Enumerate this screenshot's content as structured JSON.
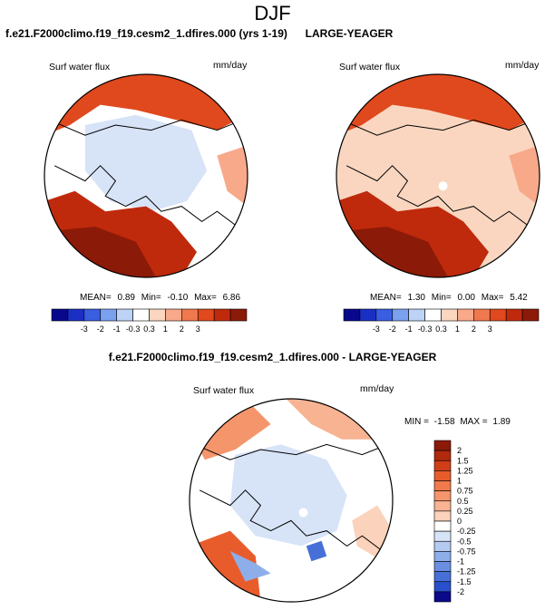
{
  "figure": {
    "season": "DJF",
    "panel1_title": "f.e21.F2000climo.f19_f19.cesm2_1.dfires.000 (yrs 1-19)",
    "panel2_title": "LARGE-YEAGER",
    "diff_title": "f.e21.F2000climo.f19_f19.cesm2_1.dfires.000 - LARGE-YEAGER"
  },
  "chart_data": [
    {
      "type": "heatmap",
      "projection": "north polar stereographic",
      "title": "f.e21.F2000climo.f19_f19.cesm2_1.dfires.000 (yrs 1-19)",
      "left_label": "Surf water flux",
      "units": "mm/day",
      "stats": {
        "mean_label": "MEAN=",
        "mean": "0.89",
        "min_label": "Min=",
        "min": "-0.10",
        "max_label": "Max=",
        "max": "6.86"
      },
      "colorbar": {
        "orientation": "horizontal",
        "levels": [
          -3,
          -2,
          -1,
          -0.3,
          0.3,
          1,
          2,
          3
        ],
        "tick_labels": [
          "-3",
          "-2",
          "-1",
          "-0.3",
          "0.3",
          "1",
          "2",
          "3"
        ],
        "colors": [
          "#08088c",
          "#1a2fc4",
          "#3a5ee0",
          "#7aa0ee",
          "#bcd3f6",
          "#ffffff",
          "#fad6c0",
          "#f7a98a",
          "#f0784f",
          "#e0491d",
          "#bf2a0c",
          "#8c1a08"
        ]
      }
    },
    {
      "type": "heatmap",
      "projection": "north polar stereographic",
      "title": "LARGE-YEAGER",
      "left_label": "Surf water flux",
      "units": "mm/day",
      "stats": {
        "mean_label": "MEAN=",
        "mean": "1.30",
        "min_label": "Min=",
        "min": "0.00",
        "max_label": "Max=",
        "max": "5.42"
      },
      "colorbar": {
        "orientation": "horizontal",
        "levels": [
          -3,
          -2,
          -1,
          -0.3,
          0.3,
          1,
          2,
          3
        ],
        "tick_labels": [
          "-3",
          "-2",
          "-1",
          "-0.3",
          "0.3",
          "1",
          "2",
          "3"
        ],
        "colors": [
          "#08088c",
          "#1a2fc4",
          "#3a5ee0",
          "#7aa0ee",
          "#bcd3f6",
          "#ffffff",
          "#fad6c0",
          "#f7a98a",
          "#f0784f",
          "#e0491d",
          "#bf2a0c",
          "#8c1a08"
        ]
      }
    },
    {
      "type": "heatmap",
      "projection": "north polar stereographic",
      "title": "f.e21.F2000climo.f19_f19.cesm2_1.dfires.000 - LARGE-YEAGER",
      "left_label": "Surf water flux",
      "units": "mm/day",
      "stats": {
        "min_label": "MIN =",
        "min": "-1.58",
        "max_label": "MAX =",
        "max": "1.89"
      },
      "colorbar": {
        "orientation": "vertical",
        "levels": [
          2,
          1.5,
          1.25,
          1,
          0.75,
          0.5,
          0.25,
          0,
          -0.25,
          -0.5,
          -0.75,
          -1,
          -1.25,
          -1.5,
          -2
        ],
        "tick_labels": [
          "2",
          "1.5",
          "1.25",
          "1",
          "0.75",
          "0.5",
          "0.25",
          "0",
          "-0.25",
          "-0.5",
          "-0.75",
          "-1",
          "-1.25",
          "-1.5",
          "-2"
        ],
        "colors": [
          "#8c1a08",
          "#b02a0e",
          "#d03e17",
          "#e85c2c",
          "#f27a4a",
          "#f5956b",
          "#f8b392",
          "#fbd2bb",
          "#ffffff",
          "#d7e3f7",
          "#b4caf1",
          "#8eaeea",
          "#6a8fe2",
          "#4670d8",
          "#2a4fcc",
          "#0a0a8a"
        ]
      }
    }
  ]
}
